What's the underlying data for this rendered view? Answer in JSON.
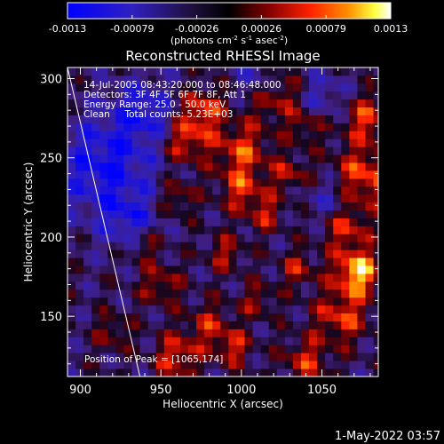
{
  "chart_data": {
    "type": "heatmap",
    "title": "Reconstructed RHESSI Image",
    "xlabel": "Heliocentric X (arcsec)",
    "ylabel": "Heliocentric Y (arcsec)",
    "xlim": [
      892,
      1085
    ],
    "ylim": [
      112,
      307
    ],
    "xticks": [
      900,
      950,
      1000,
      1050
    ],
    "yticks": [
      150,
      200,
      250,
      300
    ],
    "colorbar": {
      "min": -0.0013,
      "max": 0.0013,
      "ticks": [
        "-0.0013",
        "-0.00079",
        "-0.00026",
        "0.00026",
        "0.00079",
        "0.0013"
      ],
      "unit_text": "(photons cm",
      "unit_sup1": "-2",
      "unit_mid1": " s",
      "unit_sup2": "-1",
      "unit_mid2": " asec",
      "unit_sup3": "-2",
      "unit_end": ")"
    },
    "annotations": [
      "14-Jul-2005 08:43:20.000 to 08:46:48.000",
      "Detectors: 3F 4F 5F 6F 7F 8F, Att 1",
      "Energy Range: 25.0 - 50.0 keV",
      "Clean     Total counts: 5.23E+03"
    ],
    "peak_label": "Position of Peak = [1065,174]",
    "peak": [
      1065,
      174
    ],
    "limb_line": [
      [
        892,
        307
      ],
      [
        937,
        112
      ]
    ],
    "hotspots": [
      {
        "x": 1072,
        "y": 178,
        "value": 0.0013,
        "radius": 10
      },
      {
        "x": 1076,
        "y": 238,
        "value": 0.0009,
        "radius": 14
      },
      {
        "x": 1078,
        "y": 275,
        "value": 0.0008,
        "radius": 10
      },
      {
        "x": 1065,
        "y": 205,
        "value": 0.0007,
        "radius": 10
      },
      {
        "x": 1062,
        "y": 150,
        "value": 0.0008,
        "radius": 12
      },
      {
        "x": 1040,
        "y": 122,
        "value": 0.0007,
        "radius": 10
      },
      {
        "x": 1020,
        "y": 290,
        "value": 0.0007,
        "radius": 12
      },
      {
        "x": 1000,
        "y": 255,
        "value": 0.0008,
        "radius": 12
      },
      {
        "x": 975,
        "y": 280,
        "value": 0.0009,
        "radius": 10
      },
      {
        "x": 965,
        "y": 260,
        "value": 0.0008,
        "radius": 10
      },
      {
        "x": 960,
        "y": 225,
        "value": 0.0006,
        "radius": 8
      },
      {
        "x": 1000,
        "y": 230,
        "value": 0.0007,
        "radius": 10
      },
      {
        "x": 1015,
        "y": 215,
        "value": 0.0006,
        "radius": 8
      },
      {
        "x": 1030,
        "y": 240,
        "value": 0.0006,
        "radius": 8
      },
      {
        "x": 990,
        "y": 190,
        "value": 0.0006,
        "radius": 8
      },
      {
        "x": 950,
        "y": 170,
        "value": 0.0006,
        "radius": 9
      },
      {
        "x": 980,
        "y": 145,
        "value": 0.0006,
        "radius": 10
      },
      {
        "x": 960,
        "y": 125,
        "value": 0.0008,
        "radius": 10
      },
      {
        "x": 995,
        "y": 130,
        "value": 0.0007,
        "radius": 8
      },
      {
        "x": 1010,
        "y": 160,
        "value": 0.0005,
        "radius": 8
      },
      {
        "x": 1035,
        "y": 180,
        "value": 0.0006,
        "radius": 8
      },
      {
        "x": 1040,
        "y": 270,
        "value": 0.0005,
        "radius": 8
      },
      {
        "x": 940,
        "y": 195,
        "value": 0.0005,
        "radius": 8
      },
      {
        "x": 920,
        "y": 140,
        "value": 0.0005,
        "radius": 8
      },
      {
        "x": 915,
        "y": 245,
        "value": -0.0009,
        "radius": 22
      },
      {
        "x": 940,
        "y": 280,
        "value": -0.0007,
        "radius": 14
      },
      {
        "x": 1010,
        "y": 300,
        "value": -0.0006,
        "radius": 10
      },
      {
        "x": 1050,
        "y": 290,
        "value": -0.0005,
        "radius": 10
      },
      {
        "x": 1055,
        "y": 225,
        "value": -0.0005,
        "radius": 10
      },
      {
        "x": 930,
        "y": 210,
        "value": -0.0006,
        "radius": 12
      }
    ]
  },
  "timestamp": "1-May-2022 03:57",
  "colors": {
    "background": "#000000",
    "text": "#ffffff",
    "colormap_low": "#0000ff",
    "colormap_mid": "#000000",
    "colormap_high": "#ffffff"
  }
}
